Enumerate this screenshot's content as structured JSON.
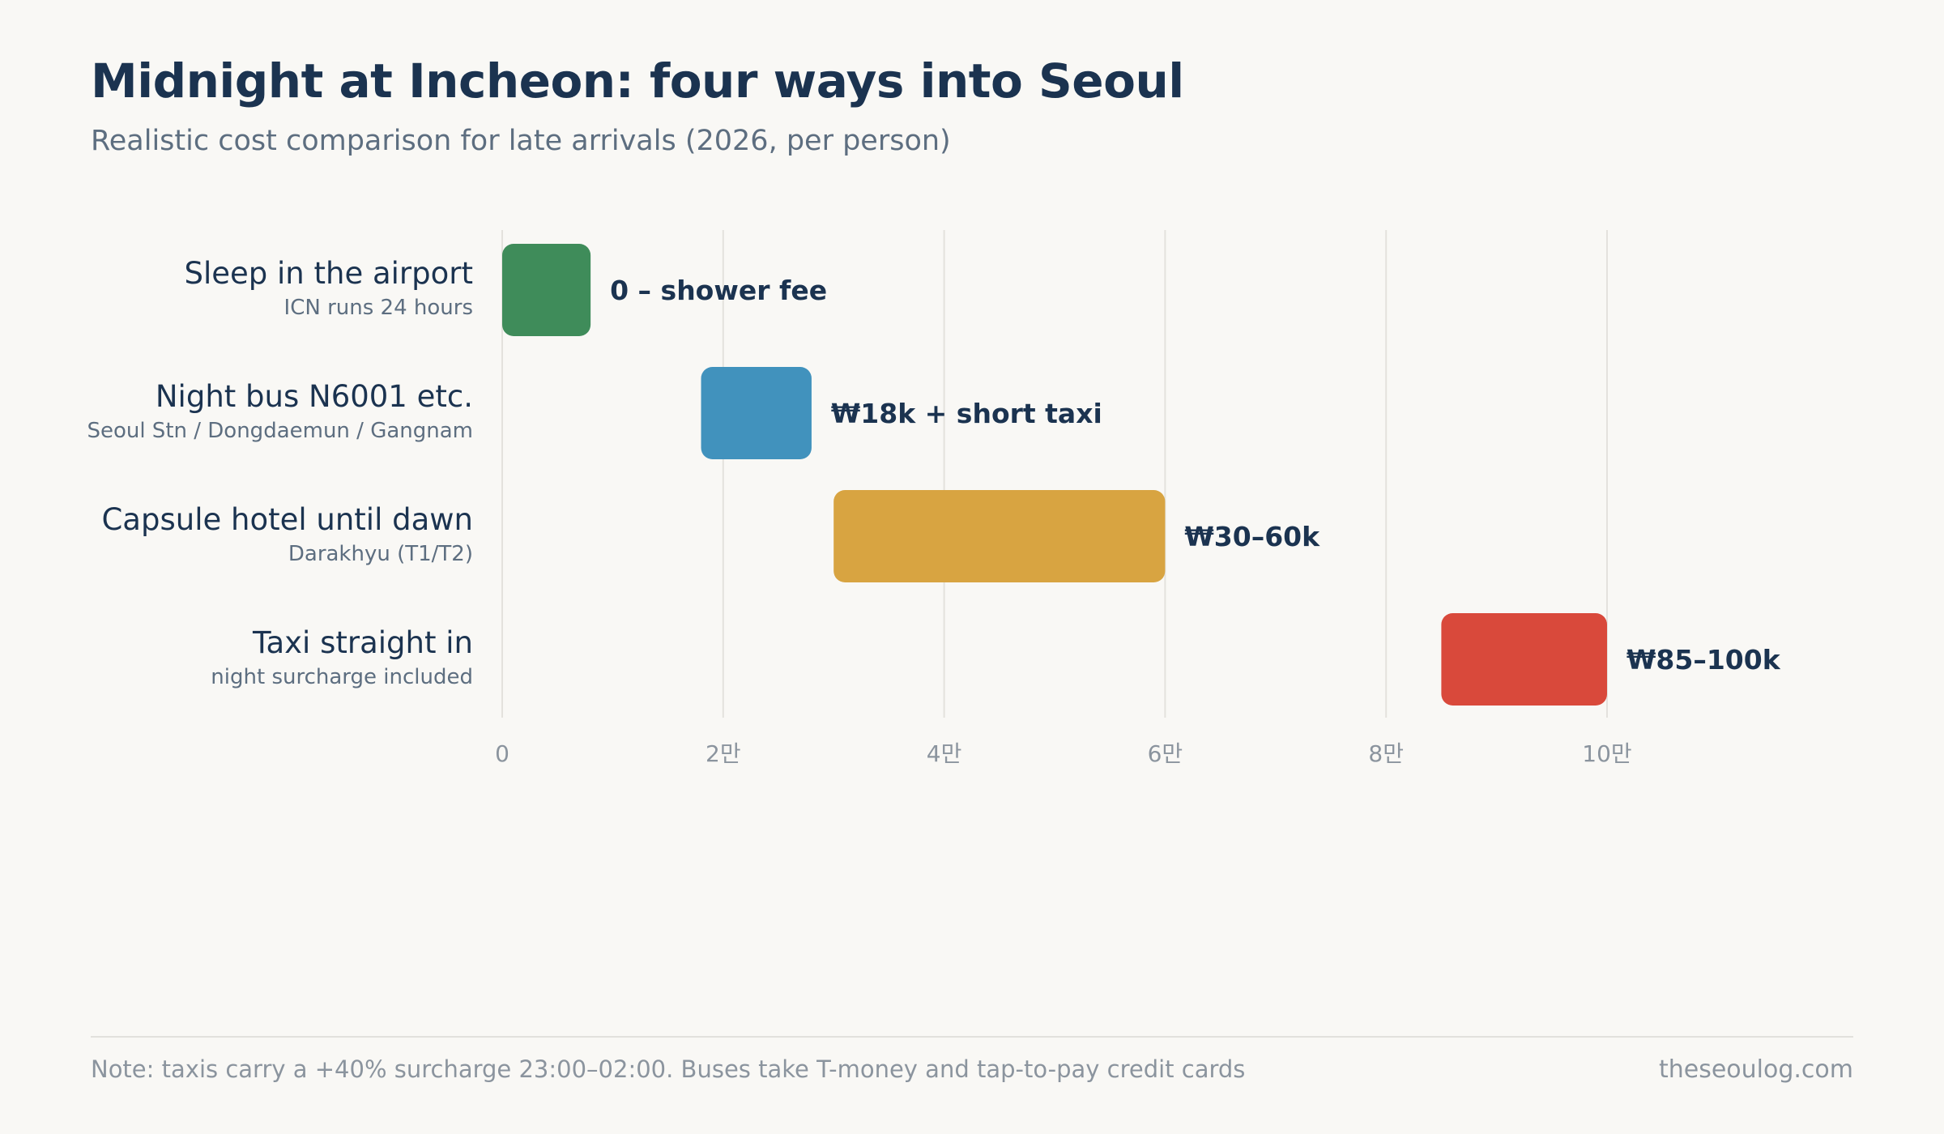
{
  "title": "Midnight at Incheon: four ways into Seoul",
  "subtitle": "Realistic cost comparison for late arrivals (2026, per person)",
  "chart_data": {
    "type": "bar",
    "orientation": "horizontal",
    "value_kind": "range",
    "grid": true,
    "xlim": [
      0,
      100000
    ],
    "x_ticks": [
      {
        "value": 0,
        "label": "0"
      },
      {
        "value": 20000,
        "label": "2만"
      },
      {
        "value": 40000,
        "label": "4만"
      },
      {
        "value": 60000,
        "label": "6만"
      },
      {
        "value": 80000,
        "label": "8만"
      },
      {
        "value": 100000,
        "label": "10만"
      }
    ],
    "categories": [
      {
        "label": "Sleep in the airport",
        "sublabel": "ICN runs 24 hours",
        "low": 0,
        "high": 8000,
        "value_label": "0 – shower fee",
        "color": "#3f8c5a"
      },
      {
        "label": "Night bus N6001 etc.",
        "sublabel": "Seoul Stn / Dongdaemun / Gangnam",
        "low": 18000,
        "high": 28000,
        "value_label": "₩18k + short taxi",
        "color": "#4192bd"
      },
      {
        "label": "Capsule hotel until dawn",
        "sublabel": "Darakhyu (T1/T2)",
        "low": 30000,
        "high": 60000,
        "value_label": "₩30–60k",
        "color": "#d8a441"
      },
      {
        "label": "Taxi straight in",
        "sublabel": "night surcharge included",
        "low": 85000,
        "high": 100000,
        "value_label": "₩85–100k",
        "color": "#d9493b"
      }
    ],
    "colors": {
      "grid": "#e4e2dd",
      "category_text": "#1b3350",
      "sublabel_text": "#5d6e80",
      "tick_text": "#8b949e",
      "value_text": "#1b3350"
    }
  },
  "footer": {
    "note": "Note: taxis carry a +40% surcharge 23:00–02:00. Buses take T-money and tap-to-pay credit cards",
    "source": "theseoulog.com"
  }
}
